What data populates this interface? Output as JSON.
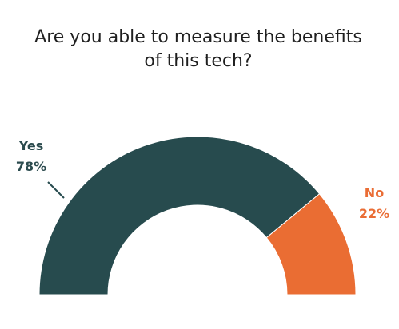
{
  "chart_data": {
    "type": "pie",
    "variant": "half-donut",
    "title": "Are you able to measure the benefits of this tech?",
    "title_lines": [
      "Are you able to measure the benefits",
      "of this tech?"
    ],
    "slices": [
      {
        "label": "Yes",
        "value": 78,
        "display": "78%",
        "color": "#274b4e"
      },
      {
        "label": "No",
        "value": 22,
        "display": "22%",
        "color": "#ea6d33"
      }
    ],
    "legend": "none"
  }
}
